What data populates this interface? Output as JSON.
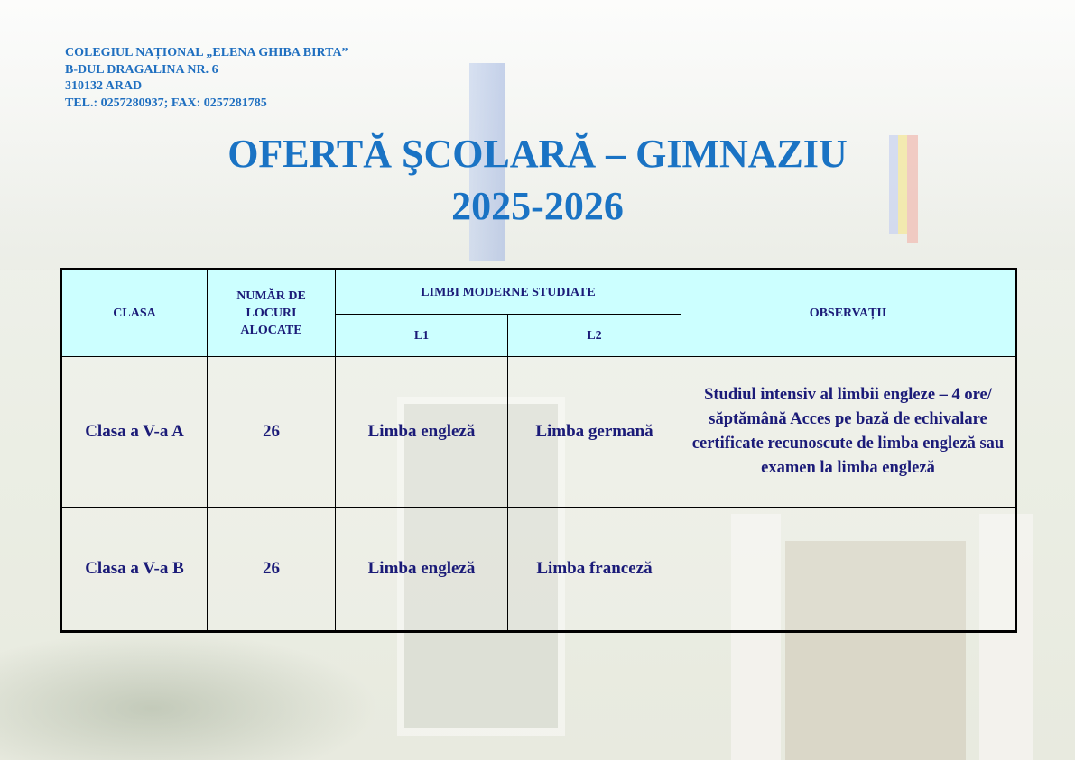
{
  "header": {
    "school": "COLEGIUL NAȚIONAL „ELENA GHIBA BIRTA”",
    "address": "B-DUL DRAGALINA NR. 6",
    "city": "310132 ARAD",
    "contact": "TEL.: 0257280937;  FAX: 0257281785"
  },
  "title": {
    "line1": "OFERTĂ ŞCOLARĂ – GIMNAZIU",
    "line2": "2025-2026"
  },
  "table": {
    "headers": {
      "clasa": "CLASA",
      "locuri": "NUMĂR DE LOCURI ALOCATE",
      "limbi": "LIMBI MODERNE STUDIATE",
      "l1": "L1",
      "l2": "L2",
      "observatii": "OBSERVAȚII"
    },
    "rows": [
      {
        "clasa": "Clasa a V-a A",
        "locuri": "26",
        "l1": "Limba engleză",
        "l2": "Limba germană",
        "observatii": "Studiul intensiv al limbii engleze – 4 ore/ săptămână Acces pe bază de echivalare certificate recunoscute de limba engleză sau examen la limba engleză"
      },
      {
        "clasa": "Clasa a V-a B",
        "locuri": "26",
        "l1": "Limba engleză",
        "l2": "Limba franceză",
        "observatii": ""
      }
    ]
  },
  "colors": {
    "title": "#1a73c4",
    "header_bg": "#ccffff",
    "text": "#1b1b78"
  }
}
